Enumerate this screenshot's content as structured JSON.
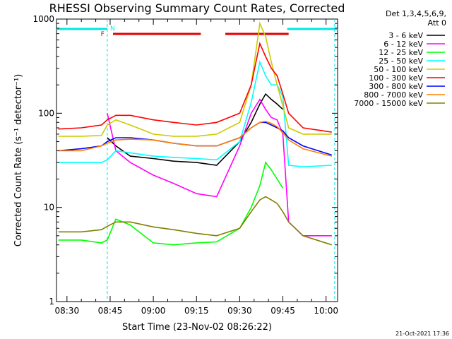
{
  "chart_data": {
    "type": "line",
    "title": "RHESSI Observing Summary Count Rates, Corrected",
    "xlabel": "Start Time (23-Nov-02 08:26:22)",
    "ylabel": "Corrected Count Rate (s⁻¹ detector⁻¹)",
    "yscale": "log",
    "ylim": [
      1,
      1000
    ],
    "xlim": [
      "08:26:22",
      "10:04:00"
    ],
    "x_ticks": [
      "08:30",
      "08:45",
      "09:00",
      "09:15",
      "09:30",
      "09:45",
      "10:00"
    ],
    "y_ticks": [
      "1",
      "10",
      "100",
      "1000"
    ],
    "grid": false,
    "legend_title": [
      "Det 1,3,4,5,6,9,",
      "Att 0"
    ],
    "legend_position": "right",
    "footer_date": "21-Oct-2021 17:36",
    "flags": {
      "attenuator_label": "F",
      "night_label": "N",
      "night_color": "#00e5e5",
      "flare_color": "#e00000",
      "night_intervals": [
        [
          "08:26:22",
          "08:44:00"
        ],
        [
          "09:46:30",
          "10:04:00"
        ]
      ],
      "flare_intervals": [
        [
          "08:46:00",
          "09:16:30"
        ],
        [
          "09:25:00",
          "09:47:00"
        ]
      ],
      "dashed_lines": [
        "08:44:00",
        "10:03:00"
      ]
    },
    "x": [
      "08:27",
      "08:35",
      "08:42",
      "08:44",
      "08:47",
      "08:52",
      "09:00",
      "09:07",
      "09:15",
      "09:22",
      "09:30",
      "09:34",
      "09:37",
      "09:39",
      "09:41",
      "09:43",
      "09:45",
      "09:47",
      "09:52",
      "10:02"
    ],
    "series": [
      {
        "name": "3 - 6 keV",
        "color": "#000000",
        "values": [
          null,
          null,
          null,
          55,
          45,
          35,
          33,
          31,
          30,
          28,
          50,
          80,
          125,
          160,
          140,
          125,
          110,
          null,
          null,
          null
        ]
      },
      {
        "name": "6 - 12 keV",
        "color": "#ff00ff",
        "values": [
          null,
          null,
          null,
          100,
          40,
          30,
          22,
          18,
          14,
          13,
          45,
          100,
          140,
          110,
          90,
          85,
          60,
          7,
          5,
          5
        ]
      },
      {
        "name": "12 - 25 keV",
        "color": "#00ff00",
        "values": [
          4.5,
          4.5,
          4.2,
          4.5,
          7.5,
          6.5,
          4.2,
          4.0,
          4.2,
          4.3,
          6,
          10,
          17,
          30,
          25,
          20,
          16,
          null,
          null,
          null
        ]
      },
      {
        "name": "25 - 50 keV",
        "color": "#00ffff",
        "values": [
          30,
          30,
          30,
          32,
          40,
          38,
          35,
          34,
          33,
          32,
          50,
          130,
          350,
          250,
          200,
          200,
          150,
          28,
          27,
          28
        ]
      },
      {
        "name": "50 - 100 keV",
        "color": "#cccc00",
        "values": [
          57,
          57,
          58,
          75,
          85,
          75,
          60,
          57,
          57,
          60,
          80,
          200,
          900,
          650,
          350,
          200,
          120,
          70,
          60,
          60
        ]
      },
      {
        "name": "100 - 300 keV",
        "color": "#ff0000",
        "values": [
          68,
          70,
          75,
          85,
          95,
          95,
          85,
          80,
          75,
          80,
          100,
          200,
          550,
          400,
          300,
          250,
          160,
          100,
          70,
          63
        ]
      },
      {
        "name": "300 - 800 keV",
        "color": "#0000ff",
        "values": [
          40,
          42,
          45,
          50,
          55,
          55,
          52,
          48,
          45,
          45,
          55,
          70,
          80,
          80,
          75,
          70,
          65,
          55,
          45,
          36
        ]
      },
      {
        "name": "800 - 7000 keV",
        "color": "#ff8000",
        "values": [
          40,
          40,
          45,
          48,
          52,
          53,
          52,
          48,
          45,
          45,
          55,
          70,
          80,
          82,
          78,
          72,
          62,
          52,
          42,
          35
        ]
      },
      {
        "name": "7000 - 15000 keV",
        "color": "#808000",
        "values": [
          5.5,
          5.5,
          5.8,
          6.3,
          7,
          7,
          6.2,
          5.8,
          5.3,
          5,
          6,
          9,
          12,
          13,
          12,
          11,
          9,
          7,
          5,
          4
        ]
      }
    ]
  }
}
